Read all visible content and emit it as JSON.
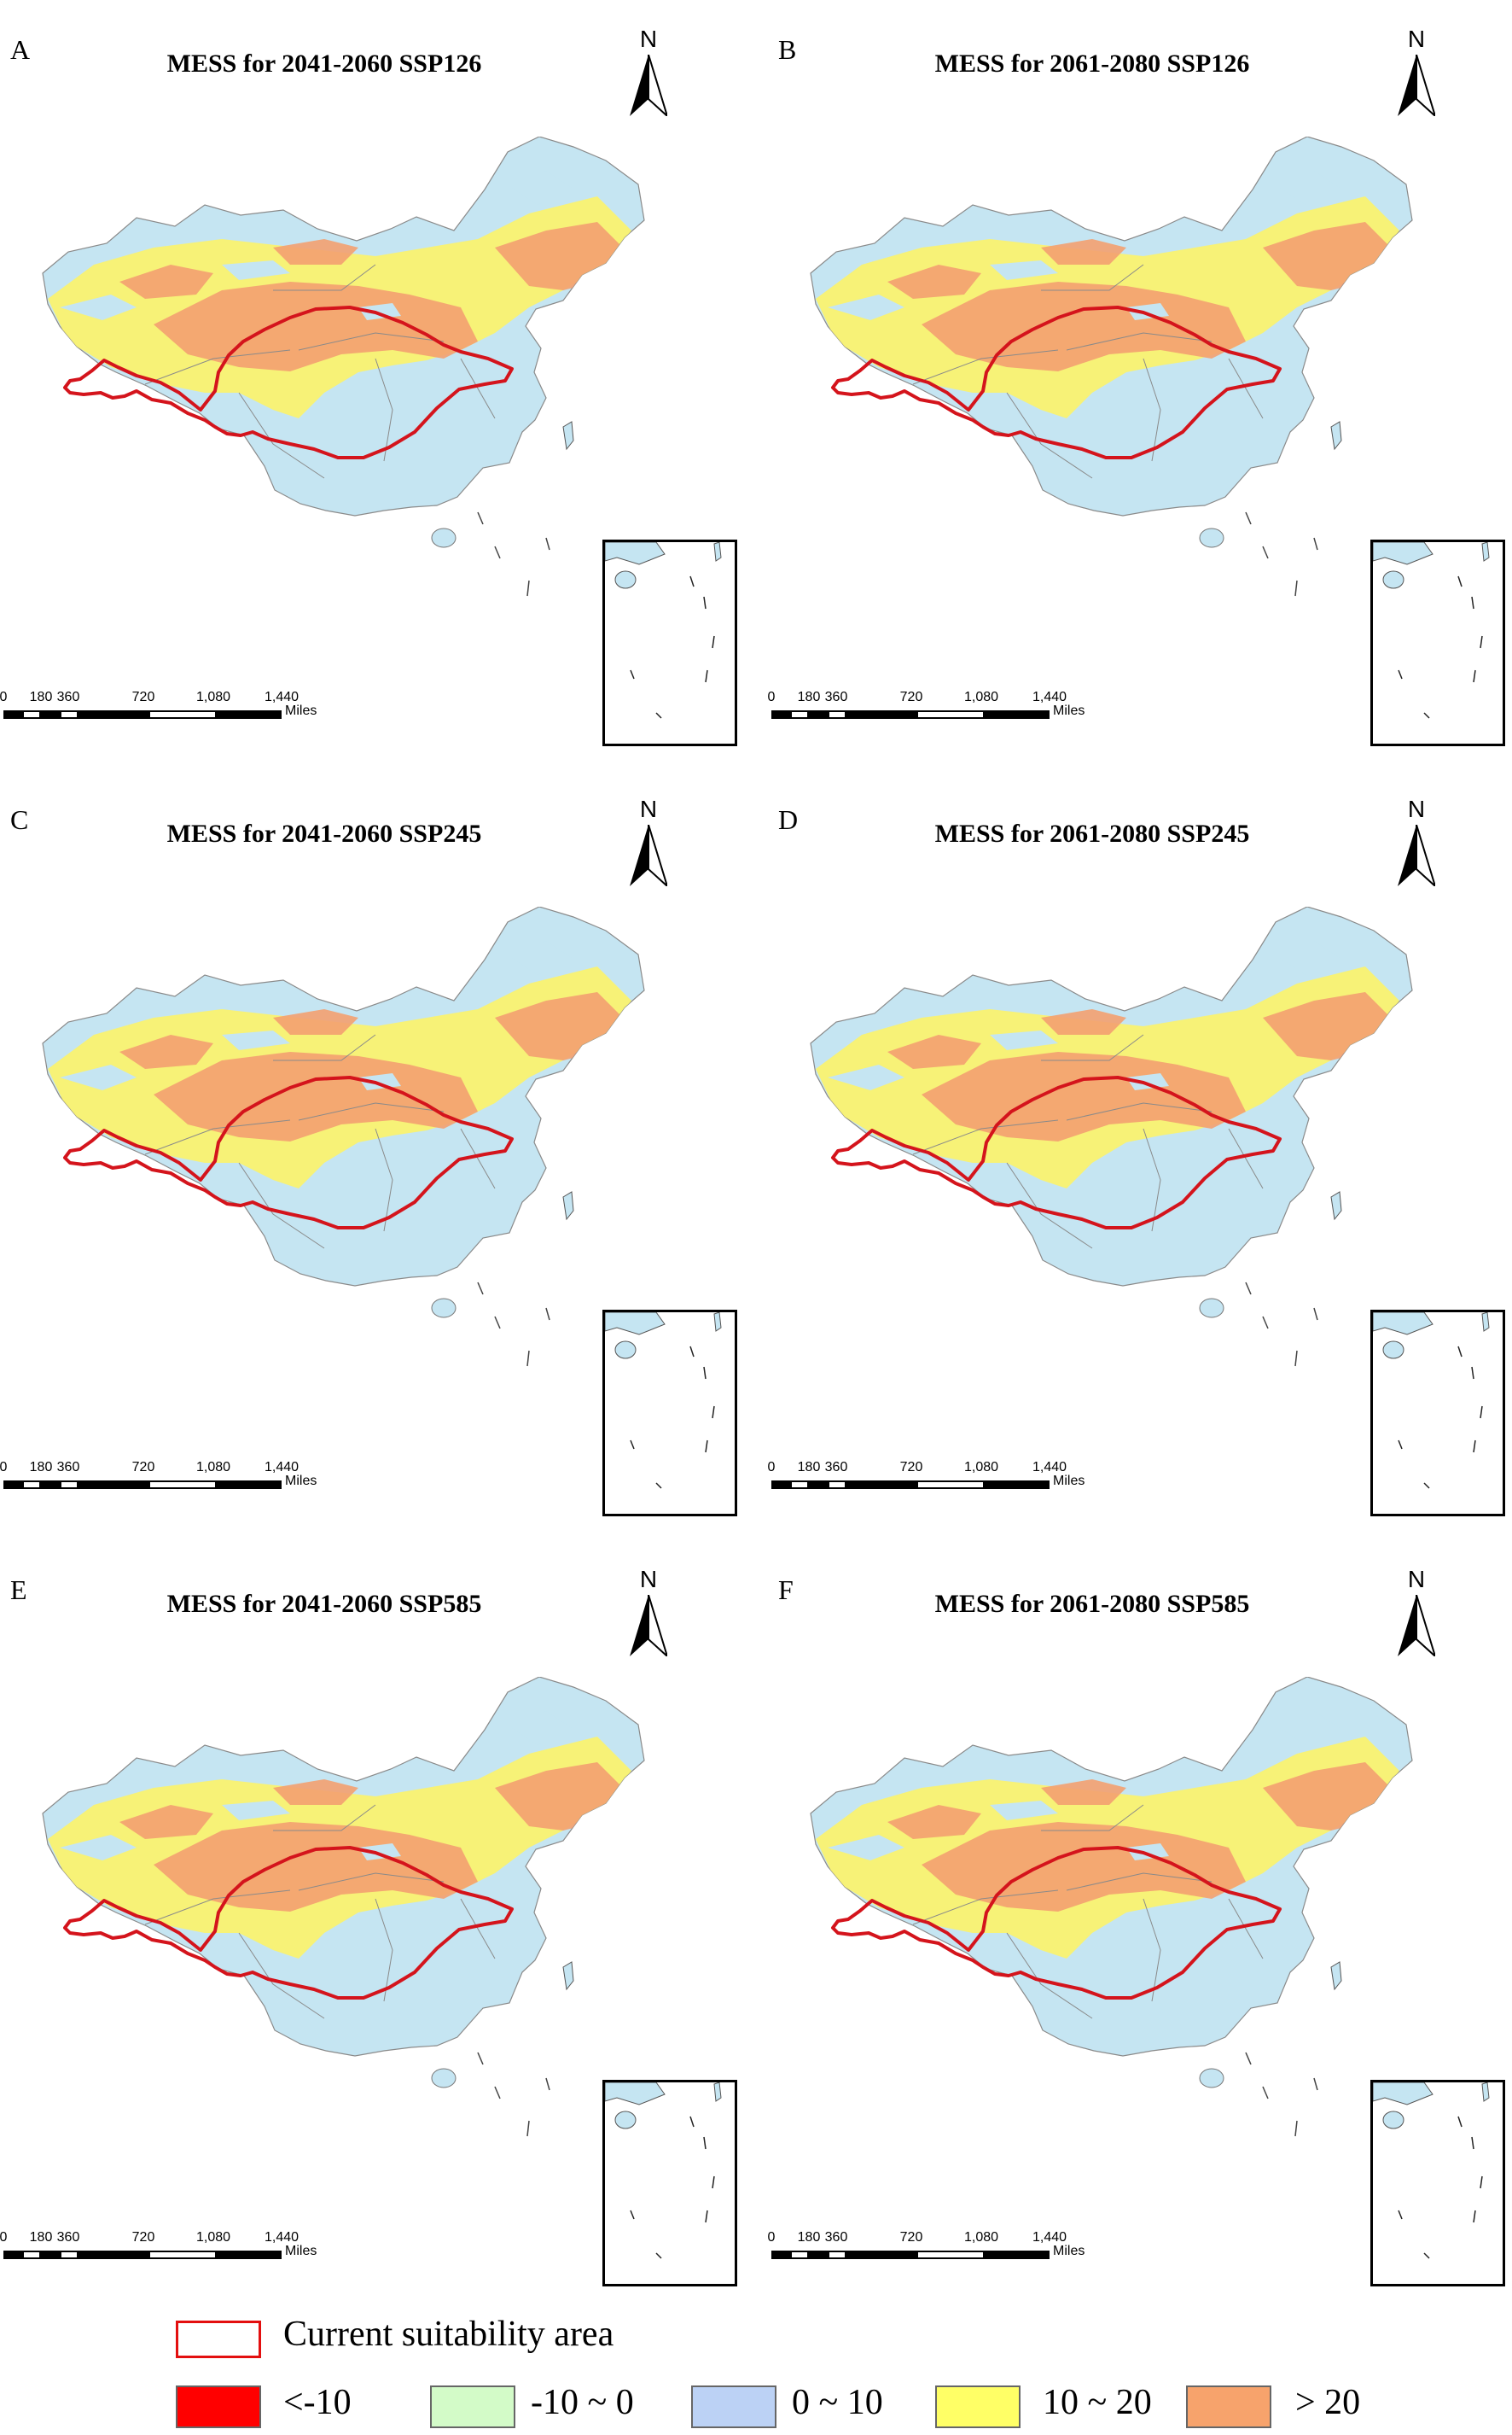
{
  "panels": [
    {
      "letter": "A",
      "title": "MESS for 2041-2060 SSP126"
    },
    {
      "letter": "B",
      "title": "MESS for 2061-2080 SSP126"
    },
    {
      "letter": "C",
      "title": "MESS for 2041-2060 SSP245"
    },
    {
      "letter": "D",
      "title": "MESS for 2061-2080 SSP245"
    },
    {
      "letter": "E",
      "title": "MESS for 2041-2060 SSP585"
    },
    {
      "letter": "F",
      "title": "MESS for 2061-2080 SSP585"
    }
  ],
  "north_label": "N",
  "scale_bar": {
    "ticks": [
      "0",
      "180",
      "360",
      "720",
      "1,080",
      "1,440"
    ],
    "unit": "Miles"
  },
  "legend": {
    "outline_label": "Current suitability area",
    "outline_color": "#e30f0f",
    "classes": [
      {
        "label": "<-10",
        "color": "#ff0000"
      },
      {
        "label": "-10 ~ 0",
        "color": "#d3fbc8"
      },
      {
        "label": "0 ~ 10",
        "color": "#bcd2f5"
      },
      {
        "label": "10 ~ 20",
        "color": "#ffff66"
      },
      {
        "label": "> 20",
        "color": "#f7a36c"
      }
    ]
  },
  "colors": {
    "base_land": "#c5e5f2",
    "yellow_zone": "#fbf36c",
    "orange_zone": "#f3a070",
    "boundary": "#8a8a8a",
    "suitability_outline": "#d4141c"
  }
}
